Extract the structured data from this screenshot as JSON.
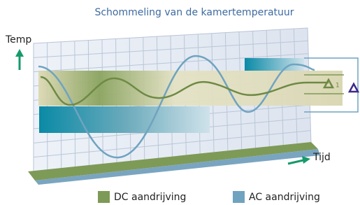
{
  "title": "Schommeling van de kamertemperatuur",
  "y_label": "Temp",
  "x_label": "Tijd",
  "marker_label": "1",
  "legend": [
    {
      "name": "DC aandrijving",
      "color": "#7e9a57"
    },
    {
      "name": "AC aandrijving",
      "color": "#6fa3c0"
    }
  ]
}
